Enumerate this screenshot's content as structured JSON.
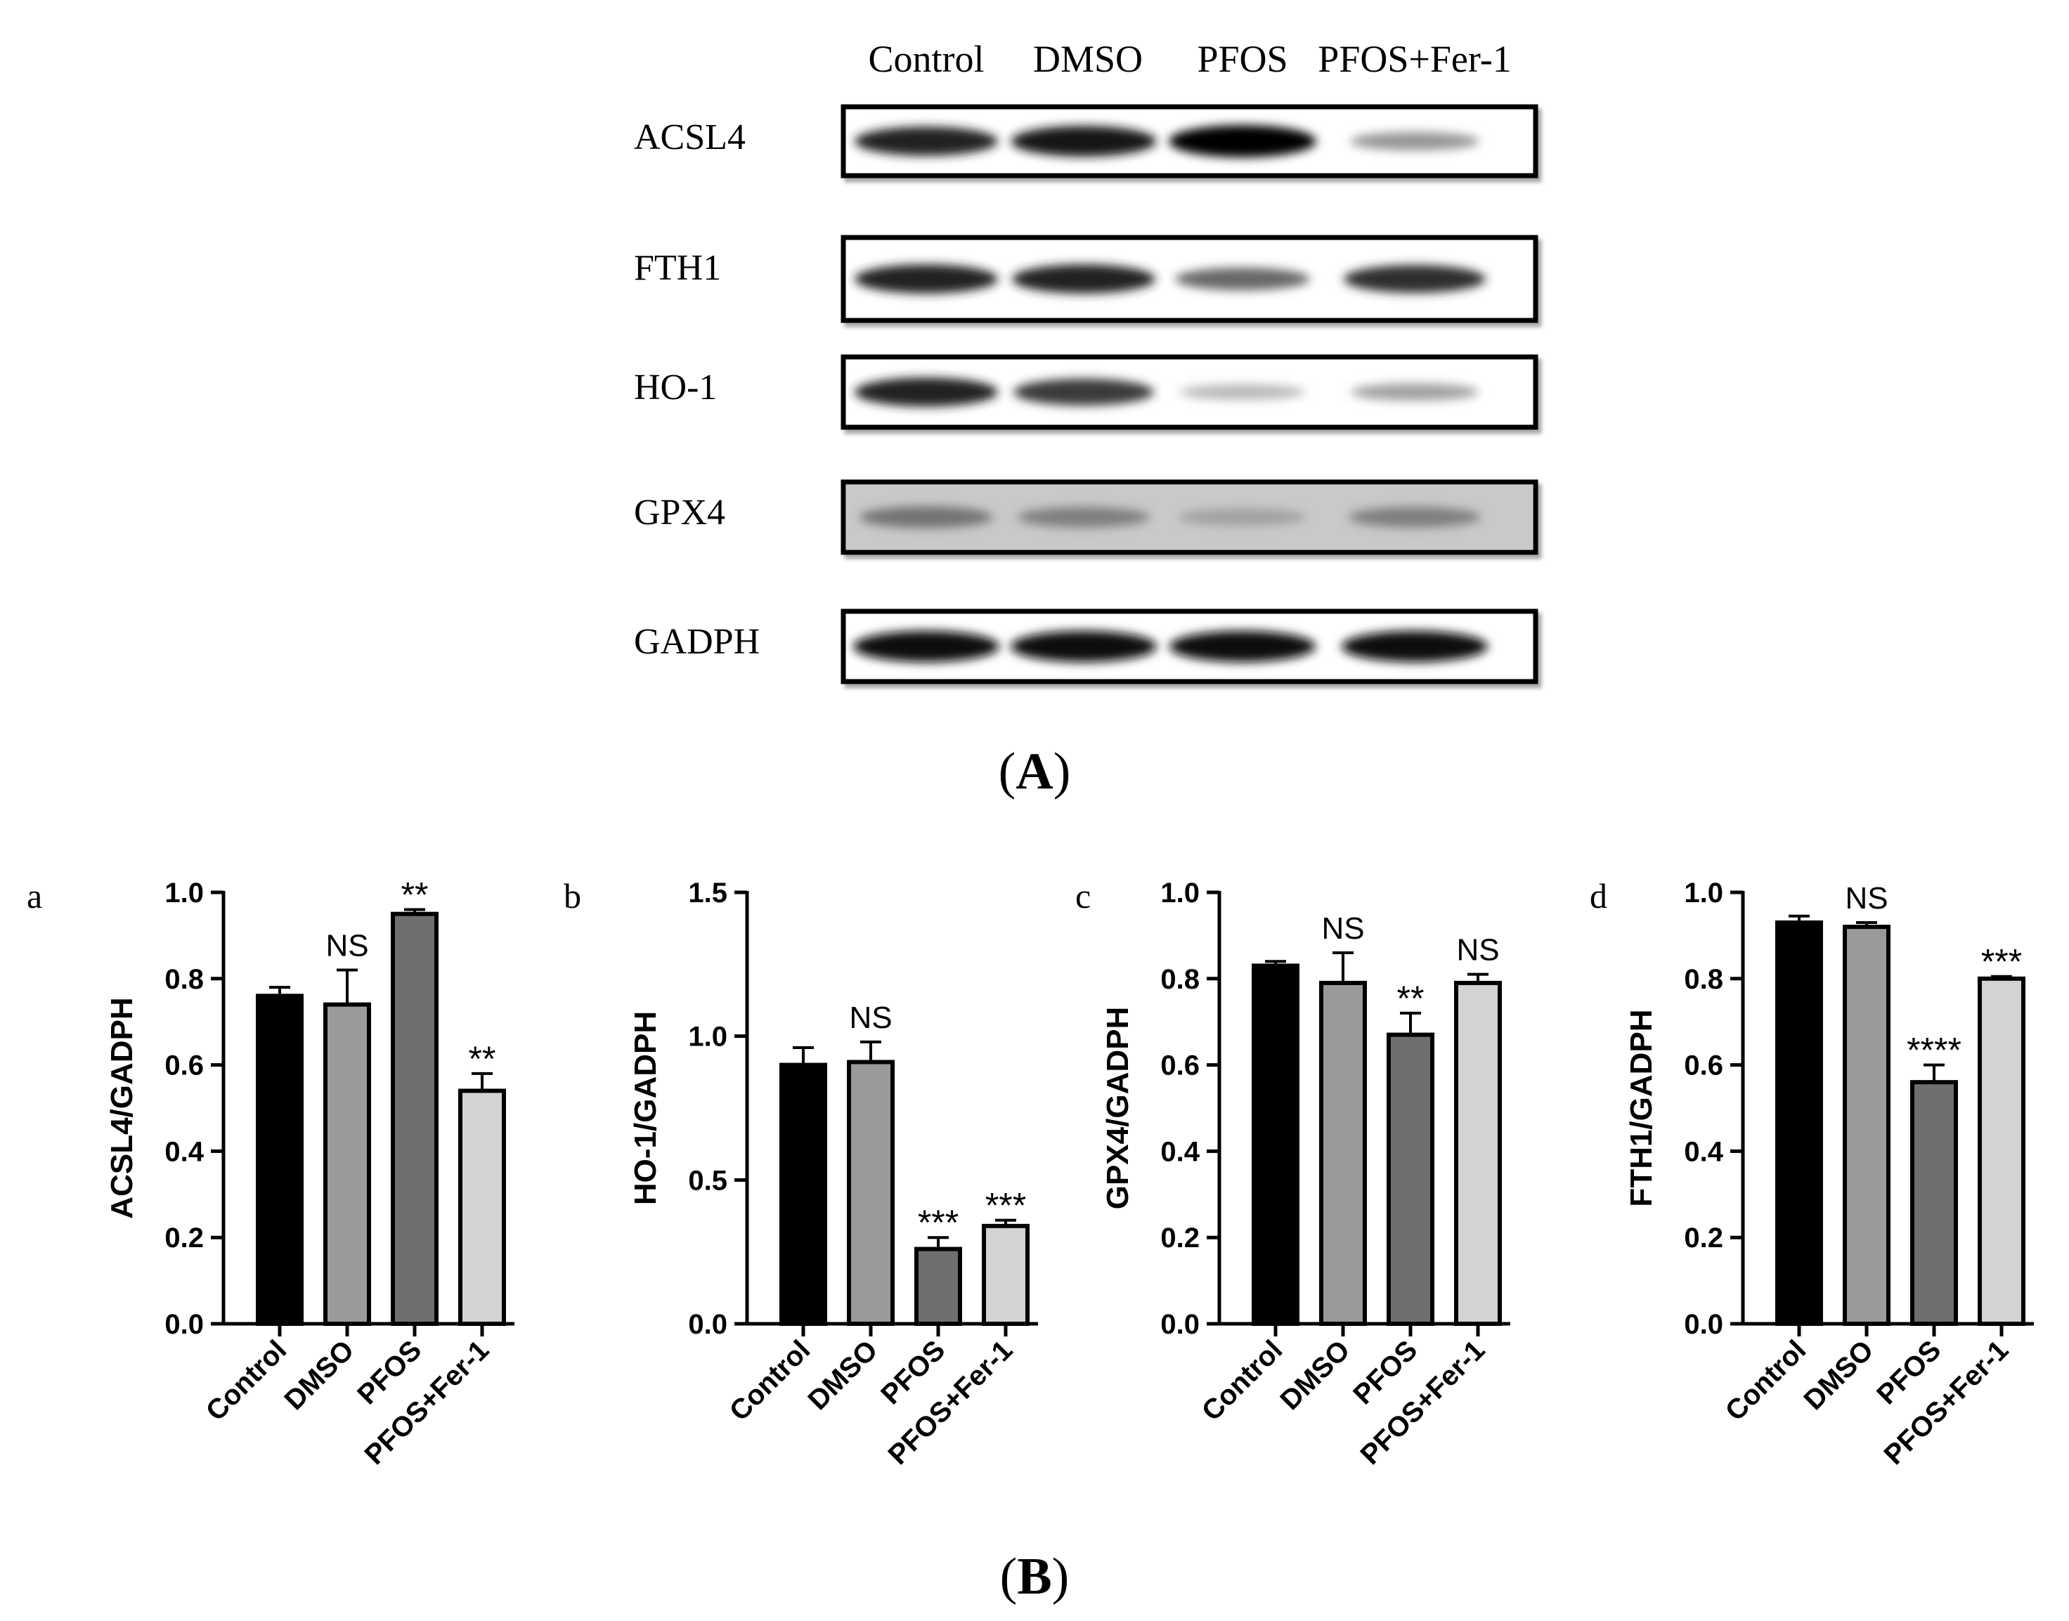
{
  "panel_A": {
    "label_open": "(",
    "label_letter": "A",
    "label_close": ")",
    "lanes": [
      "Control",
      "DMSO",
      "PFOS",
      "PFOS+Fer-1"
    ],
    "blots": [
      {
        "protein": "ACSL4",
        "intensities": [
          0.85,
          0.92,
          1.0,
          0.35
        ]
      },
      {
        "protein": "FTH1",
        "intensities": [
          0.85,
          0.85,
          0.55,
          0.8
        ]
      },
      {
        "protein": "HO-1",
        "intensities": [
          0.85,
          0.75,
          0.2,
          0.3
        ]
      },
      {
        "protein": "GPX4",
        "intensities": [
          0.5,
          0.45,
          0.3,
          0.45
        ]
      },
      {
        "protein": "GADPH",
        "intensities": [
          0.95,
          0.95,
          0.95,
          0.95
        ]
      }
    ]
  },
  "panel_B": {
    "label_open": "(",
    "label_letter": "B",
    "label_close": ")"
  },
  "chart_data": [
    {
      "type": "bar",
      "panel": "a",
      "ylabel": "ACSL4/GADPH",
      "categories": [
        "Control",
        "DMSO",
        "PFOS",
        "PFOS+Fer-1"
      ],
      "values": [
        0.76,
        0.74,
        0.95,
        0.54
      ],
      "errors": [
        0.02,
        0.08,
        0.01,
        0.04
      ],
      "annotations": [
        "",
        "NS",
        "**",
        "**"
      ],
      "ylim": [
        0,
        1.0
      ],
      "yticks": [
        "0.0",
        "0.2",
        "0.4",
        "0.6",
        "0.8",
        "1.0"
      ],
      "colors": [
        "#000000",
        "#9a9a9a",
        "#6f6f6f",
        "#d3d3d3"
      ]
    },
    {
      "type": "bar",
      "panel": "b",
      "ylabel": "HO-1/GADPH",
      "categories": [
        "Control",
        "DMSO",
        "PFOS",
        "PFOS+Fer-1"
      ],
      "values": [
        0.9,
        0.91,
        0.26,
        0.34
      ],
      "errors": [
        0.06,
        0.07,
        0.04,
        0.02
      ],
      "annotations": [
        "",
        "NS",
        "***",
        "***"
      ],
      "ylim": [
        0,
        1.5
      ],
      "yticks": [
        "0.0",
        "0.5",
        "1.0",
        "1.5"
      ],
      "colors": [
        "#000000",
        "#9a9a9a",
        "#6f6f6f",
        "#d3d3d3"
      ]
    },
    {
      "type": "bar",
      "panel": "c",
      "ylabel": "GPX4/GADPH",
      "categories": [
        "Control",
        "DMSO",
        "PFOS",
        "PFOS+Fer-1"
      ],
      "values": [
        0.83,
        0.79,
        0.67,
        0.79
      ],
      "errors": [
        0.01,
        0.07,
        0.05,
        0.02
      ],
      "annotations": [
        "",
        "NS",
        "**",
        "NS"
      ],
      "ylim": [
        0,
        1.0
      ],
      "yticks": [
        "0.0",
        "0.2",
        "0.4",
        "0.6",
        "0.8",
        "1.0"
      ],
      "colors": [
        "#000000",
        "#9a9a9a",
        "#6f6f6f",
        "#d3d3d3"
      ]
    },
    {
      "type": "bar",
      "panel": "d",
      "ylabel": "FTH1/GADPH",
      "categories": [
        "Control",
        "DMSO",
        "PFOS",
        "PFOS+Fer-1"
      ],
      "values": [
        0.93,
        0.92,
        0.56,
        0.8
      ],
      "errors": [
        0.015,
        0.01,
        0.04,
        0.005
      ],
      "annotations": [
        "",
        "NS",
        "****",
        "***"
      ],
      "ylim": [
        0,
        1.0
      ],
      "yticks": [
        "0.0",
        "0.2",
        "0.4",
        "0.6",
        "0.8",
        "1.0"
      ],
      "colors": [
        "#000000",
        "#9a9a9a",
        "#6f6f6f",
        "#d3d3d3"
      ]
    }
  ]
}
